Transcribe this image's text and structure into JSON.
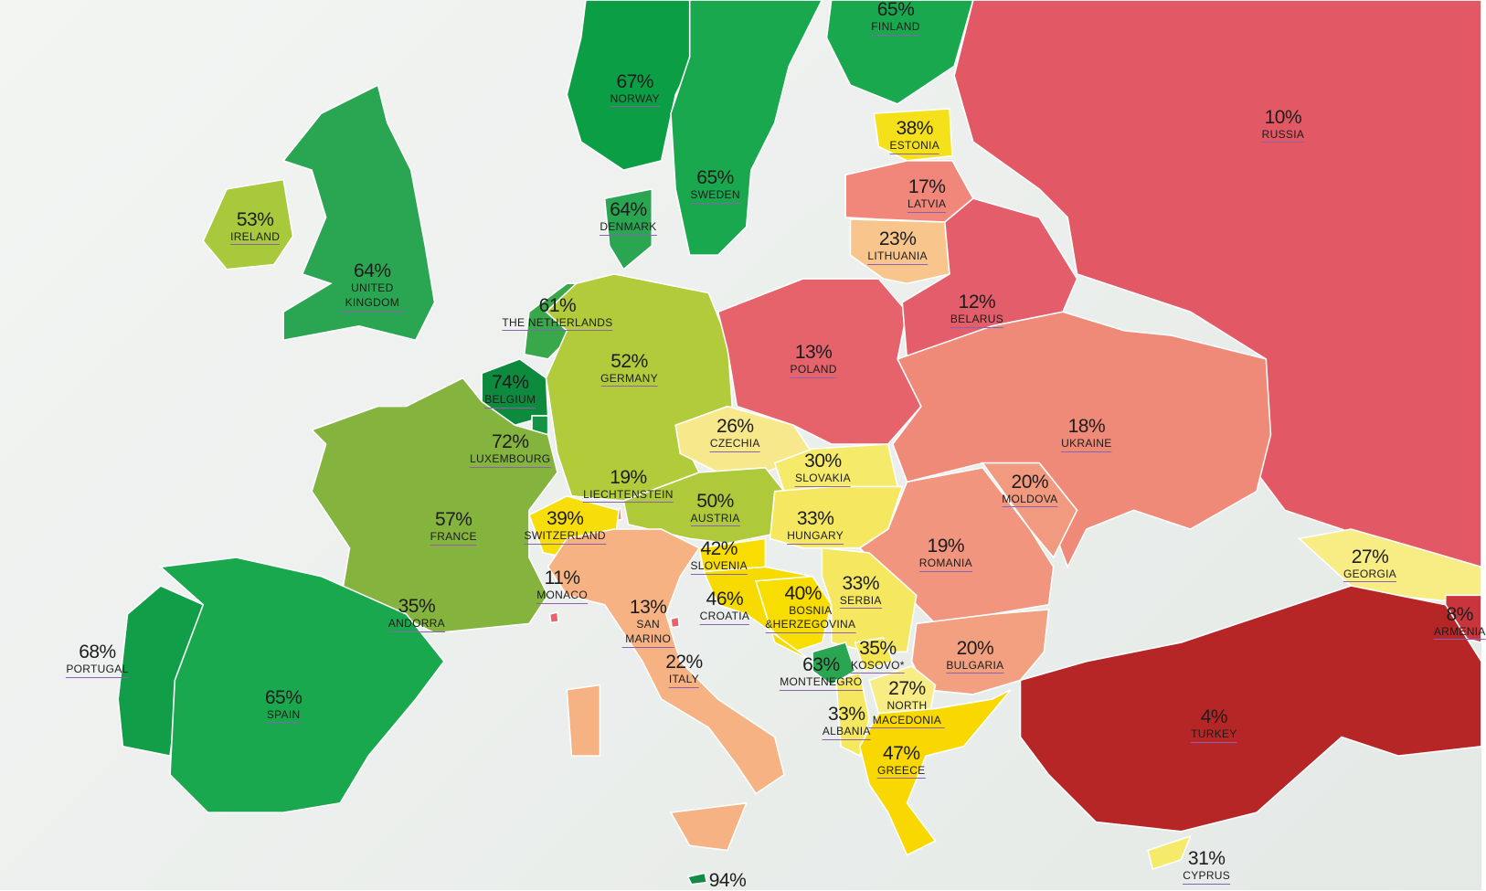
{
  "countries": [
    {
      "name": "FINLAND",
      "score": "65%",
      "color": "#1aa84f"
    },
    {
      "name": "NORWAY",
      "score": "67%",
      "color": "#0b9e45"
    },
    {
      "name": "SWEDEN",
      "score": "65%",
      "color": "#1aa84f"
    },
    {
      "name": "ESTONIA",
      "score": "38%",
      "color": "#f5e11a"
    },
    {
      "name": "RUSSIA",
      "score": "10%",
      "color": "#e25865"
    },
    {
      "name": "LATVIA",
      "score": "17%",
      "color": "#f0877a"
    },
    {
      "name": "LITHUANIA",
      "score": "23%",
      "color": "#f8c68c"
    },
    {
      "name": "DENMARK",
      "score": "64%",
      "color": "#2aa551"
    },
    {
      "name": "IRELAND",
      "score": "53%",
      "color": "#a9c93c"
    },
    {
      "name": "UNITED KINGDOM",
      "score": "64%",
      "color": "#2aa551"
    },
    {
      "name": "THE NETHERLANDS",
      "score": "61%",
      "color": "#39a84a"
    },
    {
      "name": "BELGIUM",
      "score": "74%",
      "color": "#0e8a3e"
    },
    {
      "name": "LUXEMBOURG",
      "score": "72%",
      "color": "#129444"
    },
    {
      "name": "GERMANY",
      "score": "52%",
      "color": "#b2cb3a"
    },
    {
      "name": "POLAND",
      "score": "13%",
      "color": "#e6636c"
    },
    {
      "name": "BELARUS",
      "score": "12%",
      "color": "#e35e6a"
    },
    {
      "name": "UKRAINE",
      "score": "18%",
      "color": "#ef8a79"
    },
    {
      "name": "CZECHIA",
      "score": "26%",
      "color": "#f8e88c"
    },
    {
      "name": "SLOVAKIA",
      "score": "30%",
      "color": "#f6ea6a"
    },
    {
      "name": "LIECHTENSTEIN",
      "score": "19%",
      "color": "#ef9080"
    },
    {
      "name": "AUSTRIA",
      "score": "50%",
      "color": "#aec93a"
    },
    {
      "name": "MOLDOVA",
      "score": "20%",
      "color": "#f19a80"
    },
    {
      "name": "HUNGARY",
      "score": "33%",
      "color": "#f5e860"
    },
    {
      "name": "FRANCE",
      "score": "57%",
      "color": "#84b43e"
    },
    {
      "name": "SWITZERLAND",
      "score": "39%",
      "color": "#f7de0a"
    },
    {
      "name": "ROMANIA",
      "score": "19%",
      "color": "#f2957e"
    },
    {
      "name": "GEORGIA",
      "score": "27%",
      "color": "#f8ec84"
    },
    {
      "name": "SLOVENIA",
      "score": "42%",
      "color": "#f9dc00"
    },
    {
      "name": "MONACO",
      "score": "11%",
      "color": "#e86270"
    },
    {
      "name": "BOSNIA &HERZEGOVINA",
      "score": "40%",
      "color": "#f8dd00"
    },
    {
      "name": "SERBIA",
      "score": "33%",
      "color": "#f5e860"
    },
    {
      "name": "CROATIA",
      "score": "46%",
      "color": "#f7da00"
    },
    {
      "name": "ANDORRA",
      "score": "35%",
      "color": "#f5e650"
    },
    {
      "name": "SAN MARINO",
      "score": "13%",
      "color": "#e6636c"
    },
    {
      "name": "ARMENIA",
      "score": "8%",
      "color": "#c9343d"
    },
    {
      "name": "BULGARIA",
      "score": "20%",
      "color": "#f3a081"
    },
    {
      "name": "KOSOVO*",
      "score": "35%",
      "color": "#f5e650"
    },
    {
      "name": "PORTUGAL",
      "score": "68%",
      "color": "#129e48"
    },
    {
      "name": "ITALY",
      "score": "22%",
      "color": "#f6b283"
    },
    {
      "name": "MONTENEGRO",
      "score": "63%",
      "color": "#2aa551"
    },
    {
      "name": "NORTH MACEDONIA",
      "score": "27%",
      "color": "#f8ec84"
    },
    {
      "name": "SPAIN",
      "score": "65%",
      "color": "#1aa84f"
    },
    {
      "name": "ALBANIA",
      "score": "33%",
      "color": "#f5e860"
    },
    {
      "name": "TURKEY",
      "score": "4%",
      "color": "#b62626"
    },
    {
      "name": "GREECE",
      "score": "47%",
      "color": "#f8d800"
    },
    {
      "name": "CYPRUS",
      "score": "31%",
      "color": "#f6ea6a"
    },
    {
      "score": "94%",
      "color": "#138a45"
    }
  ]
}
